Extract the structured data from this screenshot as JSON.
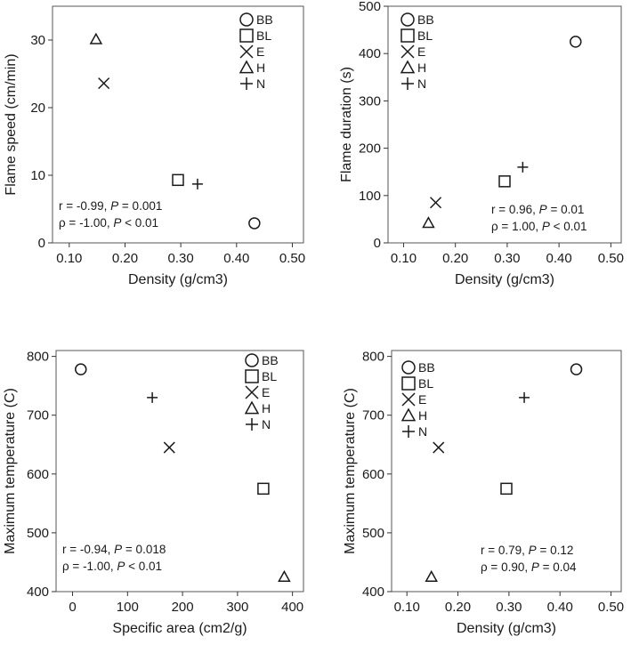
{
  "chart_data": [
    {
      "type": "scatter",
      "title": "",
      "xlabel": "Density (g/cm3)",
      "ylabel": "Flame speed (cm/min)",
      "xlim": [
        0.07,
        0.52
      ],
      "ylim": [
        0,
        35
      ],
      "xticks": [
        0.1,
        0.2,
        0.3,
        0.4,
        0.5
      ],
      "xtick_labels": [
        "0.10",
        "0.20",
        "0.30",
        "0.40",
        "0.50"
      ],
      "yticks": [
        0,
        10,
        20,
        30
      ],
      "ytick_labels": [
        "0",
        "10",
        "20",
        "30"
      ],
      "legend_position": "top-right",
      "stats": {
        "line1_prefix": "r = -0.99, ",
        "line1_italic": "P",
        "line1_suffix": " = 0.001",
        "line2_prefix": "ρ = -1.00, ",
        "line2_italic": "P",
        "line2_suffix": " < 0.01"
      },
      "stats_position": "bottom-left",
      "points": [
        {
          "label": "BB",
          "x": 0.432,
          "y": 2.9
        },
        {
          "label": "BL",
          "x": 0.295,
          "y": 9.3
        },
        {
          "label": "E",
          "x": 0.162,
          "y": 23.6
        },
        {
          "label": "H",
          "x": 0.148,
          "y": 30.1
        },
        {
          "label": "N",
          "x": 0.33,
          "y": 8.7
        }
      ]
    },
    {
      "type": "scatter",
      "title": "",
      "xlabel": "Density (g/cm3)",
      "ylabel": "Flame duration (s)",
      "xlim": [
        0.07,
        0.52
      ],
      "ylim": [
        0,
        500
      ],
      "xticks": [
        0.1,
        0.2,
        0.3,
        0.4,
        0.5
      ],
      "xtick_labels": [
        "0.10",
        "0.20",
        "0.30",
        "0.40",
        "0.50"
      ],
      "yticks": [
        0,
        100,
        200,
        300,
        400,
        500
      ],
      "ytick_labels": [
        "0",
        "100",
        "200",
        "300",
        "400",
        "500"
      ],
      "legend_position": "top-left",
      "stats": {
        "line1_prefix": "r = 0.96, ",
        "line1_italic": "P",
        "line1_suffix": " = 0.01",
        "line2_prefix": "ρ = 1.00, ",
        "line2_italic": "P",
        "line2_suffix": " < 0.01"
      },
      "stats_position": "bottom-right",
      "points": [
        {
          "label": "BB",
          "x": 0.432,
          "y": 425
        },
        {
          "label": "BL",
          "x": 0.295,
          "y": 130
        },
        {
          "label": "E",
          "x": 0.162,
          "y": 85
        },
        {
          "label": "H",
          "x": 0.148,
          "y": 42
        },
        {
          "label": "N",
          "x": 0.33,
          "y": 160
        }
      ]
    },
    {
      "type": "scatter",
      "title": "",
      "xlabel": "Specific area (cm2/g)",
      "ylabel": "Maximum temperature (C)",
      "xlim": [
        -30,
        420
      ],
      "ylim": [
        400,
        810
      ],
      "xticks": [
        0,
        100,
        200,
        300,
        400
      ],
      "xtick_labels": [
        "0",
        "100",
        "200",
        "300",
        "400"
      ],
      "yticks": [
        400,
        500,
        600,
        700,
        800
      ],
      "ytick_labels": [
        "400",
        "500",
        "600",
        "700",
        "800"
      ],
      "legend_position": "top-right",
      "stats": {
        "line1_prefix": "r = -0.94, ",
        "line1_italic": "P",
        "line1_suffix": " = 0.018",
        "line2_prefix": "ρ = -1.00, ",
        "line2_italic": "P",
        "line2_suffix": " < 0.01"
      },
      "stats_position": "bottom-left",
      "points": [
        {
          "label": "BB",
          "x": 15,
          "y": 778
        },
        {
          "label": "BL",
          "x": 347,
          "y": 575
        },
        {
          "label": "E",
          "x": 176,
          "y": 645
        },
        {
          "label": "H",
          "x": 385,
          "y": 425
        },
        {
          "label": "N",
          "x": 145,
          "y": 730
        }
      ]
    },
    {
      "type": "scatter",
      "title": "",
      "xlabel": "Density (g/cm3)",
      "ylabel": "Maximum temperature (C)",
      "xlim": [
        0.07,
        0.52
      ],
      "ylim": [
        400,
        810
      ],
      "xticks": [
        0.1,
        0.2,
        0.3,
        0.4,
        0.5
      ],
      "xtick_labels": [
        "0.10",
        "0.20",
        "0.30",
        "0.40",
        "0.50"
      ],
      "yticks": [
        400,
        500,
        600,
        700,
        800
      ],
      "ytick_labels": [
        "400",
        "500",
        "600",
        "700",
        "800"
      ],
      "legend_position": "top-left",
      "stats": {
        "line1_prefix": "r = 0.79, ",
        "line1_italic": "P",
        "line1_suffix": " = 0.12",
        "line2_prefix": "ρ = 0.90, ",
        "line2_italic": "P",
        "line2_suffix": " = 0.04"
      },
      "stats_position": "bottom-right",
      "points": [
        {
          "label": "BB",
          "x": 0.432,
          "y": 778
        },
        {
          "label": "BL",
          "x": 0.295,
          "y": 575
        },
        {
          "label": "E",
          "x": 0.162,
          "y": 645
        },
        {
          "label": "H",
          "x": 0.148,
          "y": 425
        },
        {
          "label": "N",
          "x": 0.33,
          "y": 730
        }
      ]
    }
  ],
  "legend": {
    "items": [
      {
        "label": "BB",
        "marker": "circle"
      },
      {
        "label": "BL",
        "marker": "square"
      },
      {
        "label": "E",
        "marker": "x-cross"
      },
      {
        "label": "H",
        "marker": "triangle"
      },
      {
        "label": "N",
        "marker": "plus"
      }
    ]
  }
}
